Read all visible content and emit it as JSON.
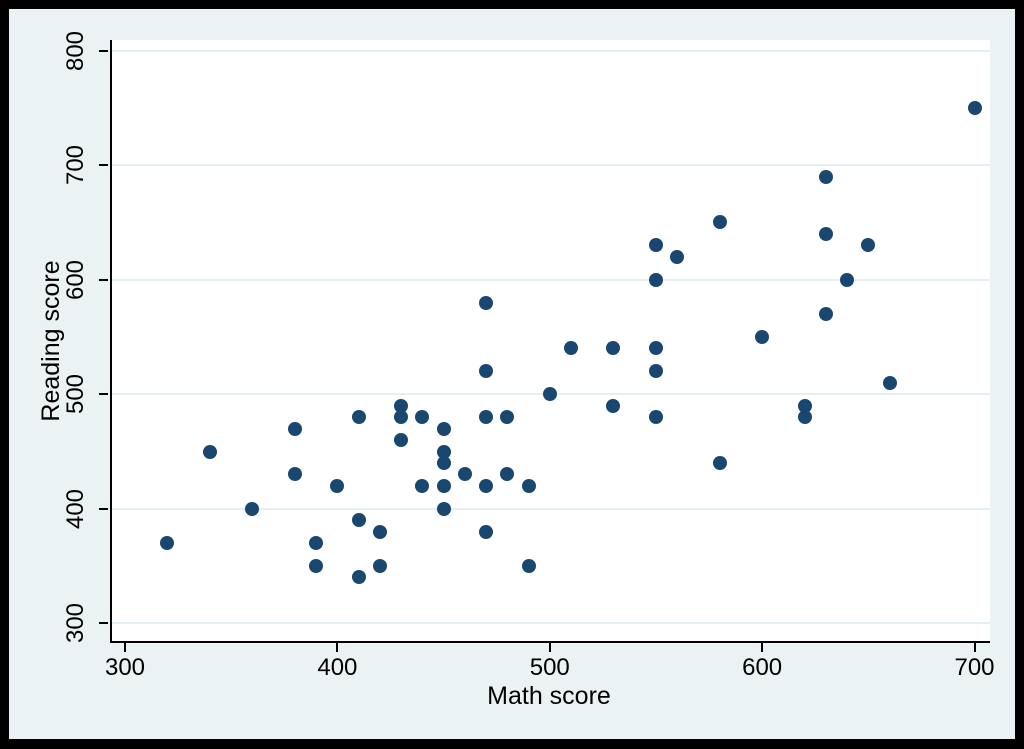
{
  "chart_data": {
    "type": "scatter",
    "title": "",
    "xlabel": "Math score",
    "ylabel": "Reading score",
    "xlim": [
      300,
      700
    ],
    "ylim": [
      300,
      800
    ],
    "x_ticks": [
      300,
      400,
      500,
      600,
      700
    ],
    "y_ticks": [
      300,
      400,
      500,
      600,
      700,
      800
    ],
    "grid": "horizontal-only",
    "legend_position": "none",
    "marker_color": "#1a476f",
    "figure_background": "#eaf2f3",
    "plot_background": "#ffffff",
    "gridline_color": "#e4eef3",
    "frame_color": "#000000",
    "points": [
      [
        320,
        370
      ],
      [
        340,
        450
      ],
      [
        360,
        400
      ],
      [
        380,
        430
      ],
      [
        380,
        470
      ],
      [
        390,
        350
      ],
      [
        390,
        370
      ],
      [
        400,
        420
      ],
      [
        410,
        340
      ],
      [
        410,
        390
      ],
      [
        410,
        480
      ],
      [
        420,
        350
      ],
      [
        420,
        380
      ],
      [
        430,
        460
      ],
      [
        430,
        480
      ],
      [
        430,
        490
      ],
      [
        440,
        420
      ],
      [
        440,
        480
      ],
      [
        450,
        400
      ],
      [
        450,
        420
      ],
      [
        450,
        440
      ],
      [
        450,
        450
      ],
      [
        450,
        470
      ],
      [
        460,
        430
      ],
      [
        470,
        380
      ],
      [
        470,
        420
      ],
      [
        470,
        480
      ],
      [
        470,
        520
      ],
      [
        470,
        580
      ],
      [
        480,
        430
      ],
      [
        480,
        480
      ],
      [
        490,
        350
      ],
      [
        490,
        420
      ],
      [
        500,
        500
      ],
      [
        510,
        540
      ],
      [
        530,
        490
      ],
      [
        530,
        540
      ],
      [
        550,
        480
      ],
      [
        550,
        520
      ],
      [
        550,
        540
      ],
      [
        550,
        600
      ],
      [
        550,
        630
      ],
      [
        560,
        620
      ],
      [
        580,
        440
      ],
      [
        580,
        650
      ],
      [
        600,
        550
      ],
      [
        620,
        480
      ],
      [
        620,
        490
      ],
      [
        630,
        570
      ],
      [
        630,
        640
      ],
      [
        630,
        690
      ],
      [
        640,
        600
      ],
      [
        650,
        630
      ],
      [
        660,
        510
      ],
      [
        700,
        750
      ]
    ]
  }
}
